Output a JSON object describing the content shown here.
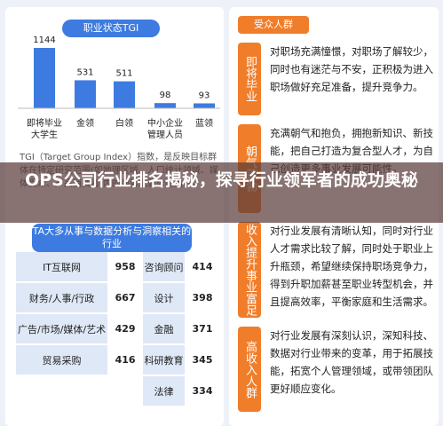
{
  "title": "OPS公司行业排名揭秘，探寻行业领军者的成功奥秘",
  "left": {
    "tgi_header": "职业状态TGI",
    "bars": [
      {
        "label": "即将毕业大学生",
        "value": 1144
      },
      {
        "label": "金领",
        "value": 531
      },
      {
        "label": "白领",
        "value": 511
      },
      {
        "label": "中小企业管理人员",
        "value": 98
      },
      {
        "label": "蓝领",
        "value": 93
      }
    ],
    "note": "TGI（Target Group Index）指数，是反映目标群体在特定研究范围(如地理区域、人口统计领域、媒体受众、产品消费者)内的强势或弱势的指数。",
    "industry_header": "TA大多从事与数据分析与洞察相关的行业",
    "table": {
      "rows": [
        [
          "IT互联网",
          958,
          "咨询顾问",
          414
        ],
        [
          "财务/人事/行政",
          667,
          "设计",
          398
        ],
        [
          "广告/市场/媒体/艺术",
          429,
          "金融",
          371
        ],
        [
          "贸易采购",
          416,
          "科研教育",
          345
        ],
        [
          null,
          null,
          "法律",
          334
        ]
      ]
    }
  },
  "right": {
    "header": "受众人群",
    "groups": [
      {
        "label": "即将毕业",
        "text": "对职场充满憧憬，对职场了解较少，同时也有迷茫与不安，正积极为进入职场做好充足准备，提升竞争力。"
      },
      {
        "label": "朝气蓬勃",
        "text": "充满朝气和抱负，拥抱新知识、新技能，把自己打造为复合型人才，为自己创造更多事业发展可能性。"
      },
      {
        "label": "收入提升事业富足",
        "text": "对行业发展有清晰认知，同时对行业人才需求比较了解，同时处于职业上升瓶颈，希望继续保持职场竞争力，得到升职加薪甚至职业转型机会，并且提高效率，平衡家庭和生活需求。"
      },
      {
        "label": "高收入人群",
        "text": "对行业发展有深刻认识，深知科技、数据对行业带来的变革，用于拓展技能，拓宽个人管理领域，或带领团队更好顺应变化。"
      }
    ]
  }
}
